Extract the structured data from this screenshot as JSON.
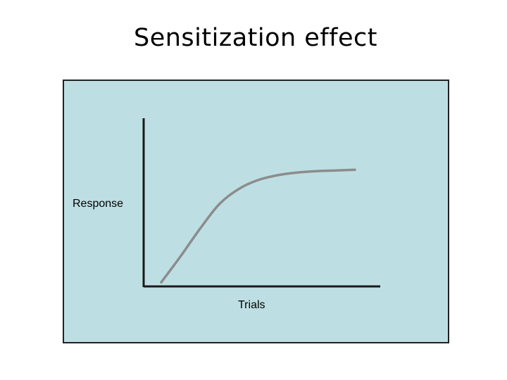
{
  "colors": {
    "panel_background": "#bddfe3",
    "axis": "#1a1a1a",
    "curve": "#8c8c8c"
  },
  "chart_data": {
    "type": "line",
    "title": "Sensitization effect",
    "xlabel": "Trials",
    "ylabel": "Response",
    "ticks": false,
    "grid": false,
    "legend": false,
    "xlim": [
      0,
      1
    ],
    "ylim": [
      0,
      1
    ],
    "series": [
      {
        "x": [
          0.0,
          0.1,
          0.2,
          0.3,
          0.4,
          0.5,
          0.6,
          0.7,
          0.8,
          0.9,
          1.0
        ],
        "y": [
          0.03,
          0.22,
          0.42,
          0.6,
          0.71,
          0.775,
          0.81,
          0.83,
          0.84,
          0.845,
          0.85
        ]
      }
    ]
  }
}
